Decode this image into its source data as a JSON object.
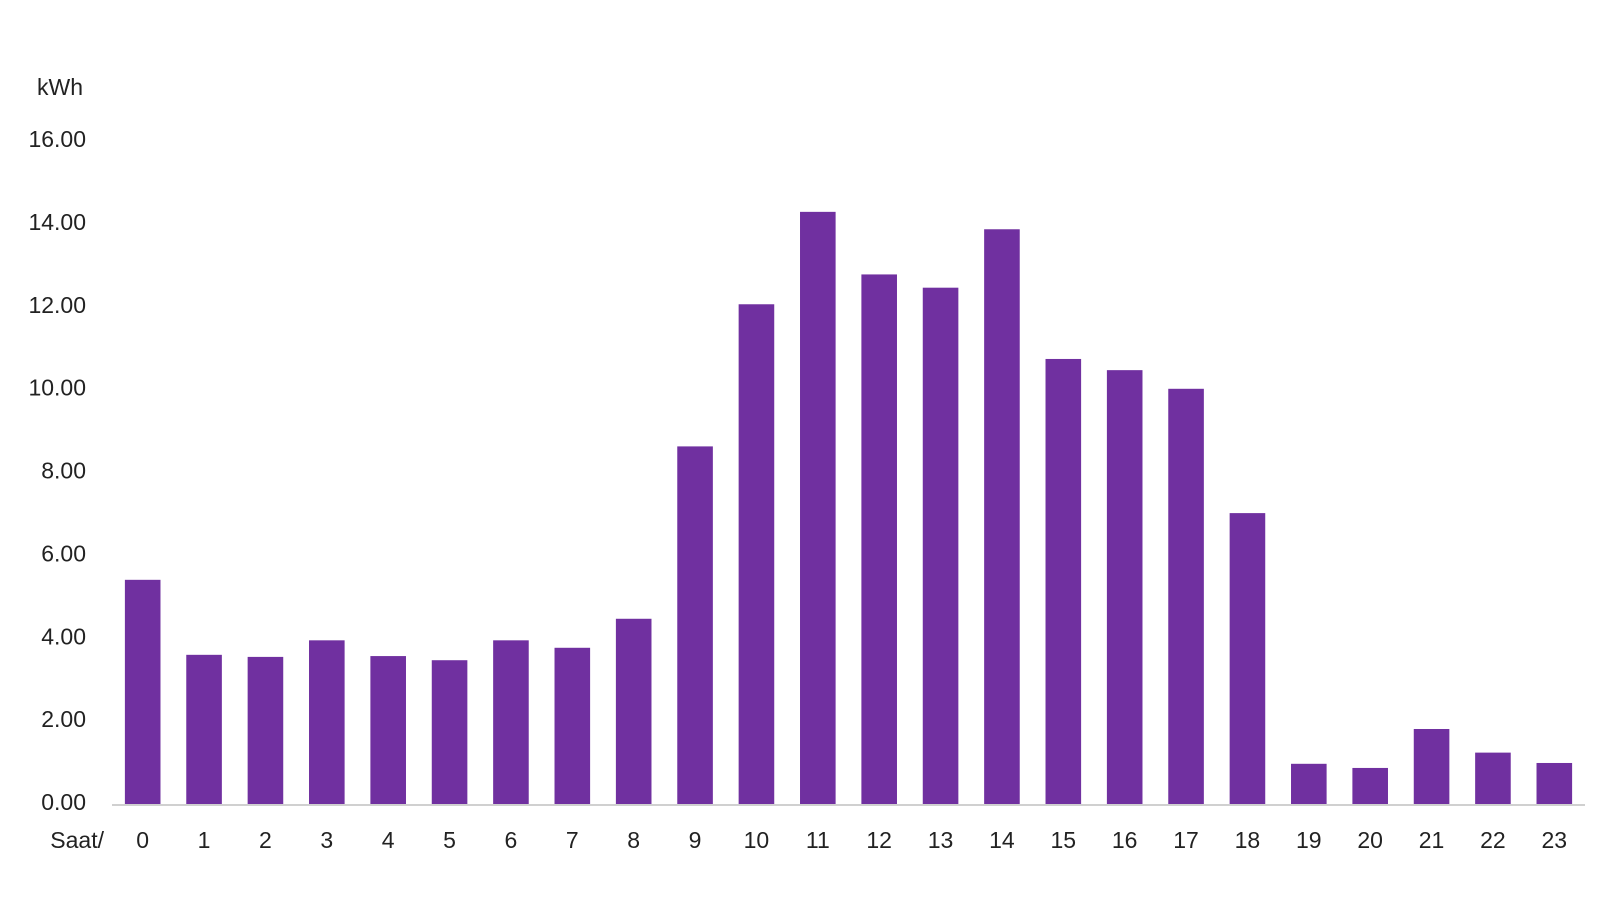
{
  "chart_data": {
    "type": "bar",
    "y_label": "kWh",
    "x_label": "Saat/",
    "categories": [
      "0",
      "1",
      "2",
      "3",
      "4",
      "5",
      "6",
      "7",
      "8",
      "9",
      "10",
      "11",
      "12",
      "13",
      "14",
      "15",
      "16",
      "17",
      "18",
      "19",
      "20",
      "21",
      "22",
      "23"
    ],
    "values": [
      5.41,
      3.6,
      3.55,
      3.95,
      3.57,
      3.47,
      3.95,
      3.77,
      4.47,
      8.63,
      12.06,
      14.29,
      12.78,
      12.46,
      13.87,
      10.74,
      10.47,
      10.02,
      7.02,
      0.97,
      0.87,
      1.81,
      1.24,
      0.99
    ],
    "color": "#7030a0",
    "ylim": [
      0,
      16
    ],
    "yticks": [
      {
        "value": 0,
        "label": "0.00"
      },
      {
        "value": 2,
        "label": "2.00"
      },
      {
        "value": 4,
        "label": "4.00"
      },
      {
        "value": 6,
        "label": "6.00"
      },
      {
        "value": 8,
        "label": "8.00"
      },
      {
        "value": 10,
        "label": "10.00"
      },
      {
        "value": 12,
        "label": "12.00"
      },
      {
        "value": 14,
        "label": "14.00"
      },
      {
        "value": 16,
        "label": "16.00"
      }
    ],
    "grid": false
  }
}
